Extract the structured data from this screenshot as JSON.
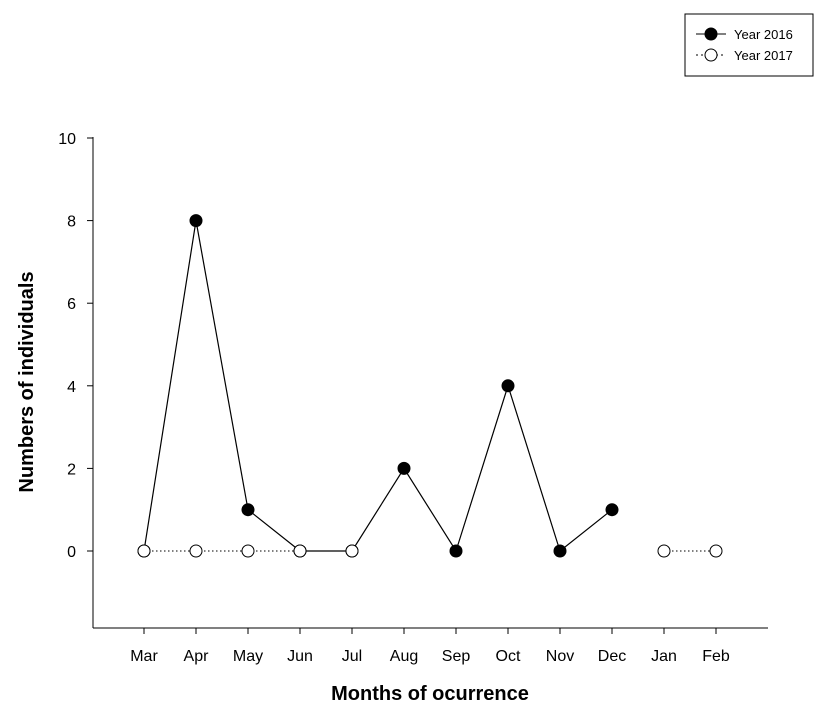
{
  "chart_data": {
    "type": "line",
    "xlabel": "Months of ocurrence",
    "ylabel": "Numbers of individuals",
    "categories": [
      "Mar",
      "Apr",
      "May",
      "Jun",
      "Jul",
      "Aug",
      "Sep",
      "Oct",
      "Nov",
      "Dec",
      "Jan",
      "Feb"
    ],
    "ylim": [
      -2,
      10
    ],
    "yticks": [
      0,
      2,
      4,
      6,
      8,
      10
    ],
    "grid": false,
    "legend_position": "top-right",
    "series": [
      {
        "name": "Year 2016",
        "marker": "filled-circle",
        "line": "solid",
        "color": "#000000",
        "values": [
          0,
          8,
          1,
          0,
          0,
          2,
          0,
          4,
          0,
          1,
          null,
          null
        ]
      },
      {
        "name": "Year 2017",
        "marker": "open-circle",
        "line": "dotted",
        "color": "#000000",
        "values": [
          0,
          0,
          0,
          0,
          0,
          null,
          null,
          null,
          null,
          null,
          0,
          0
        ]
      }
    ]
  }
}
